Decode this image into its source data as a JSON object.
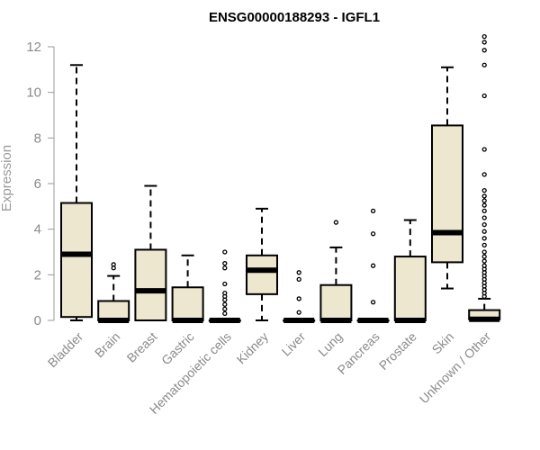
{
  "colors": {
    "box_fill": "#ede7cf",
    "box_stroke": "#000000",
    "median": "#000000",
    "axis": "#9a9a9a",
    "text_muted": "#8a8a8a"
  },
  "chart_data": {
    "type": "boxplot",
    "title": "ENSG00000188293 - IGFL1",
    "xlabel": "",
    "ylabel": "Expression",
    "ylim": [
      0,
      12.4
    ],
    "yticks": [
      0,
      2,
      4,
      6,
      8,
      10,
      12
    ],
    "grid": false,
    "legend": "none",
    "categories": [
      "Bladder",
      "Brain",
      "Breast",
      "Gastric",
      "Hematopoietic cells",
      "Kidney",
      "Liver",
      "Lung",
      "Pancreas",
      "Prostate",
      "Skin",
      "Unknown / Other"
    ],
    "boxes": [
      {
        "category": "Bladder",
        "whisker_low": 0.0,
        "q1": 0.15,
        "median": 2.9,
        "q3": 5.15,
        "whisker_high": 11.2,
        "outliers": []
      },
      {
        "category": "Brain",
        "whisker_low": 0.0,
        "q1": 0.0,
        "median": 0.0,
        "q3": 0.85,
        "whisker_high": 1.95,
        "outliers": [
          2.3,
          2.45
        ]
      },
      {
        "category": "Breast",
        "whisker_low": 0.0,
        "q1": 0.0,
        "median": 1.3,
        "q3": 3.1,
        "whisker_high": 5.9,
        "outliers": []
      },
      {
        "category": "Gastric",
        "whisker_low": 0.0,
        "q1": 0.0,
        "median": 0.0,
        "q3": 1.45,
        "whisker_high": 2.85,
        "outliers": []
      },
      {
        "category": "Hematopoietic cells",
        "whisker_low": 0.0,
        "q1": 0.0,
        "median": 0.0,
        "q3": 0.0,
        "whisker_high": 0.0,
        "outliers": [
          0.3,
          0.5,
          0.7,
          0.9,
          1.05,
          1.2,
          1.6,
          2.3,
          2.5,
          3.0
        ]
      },
      {
        "category": "Kidney",
        "whisker_low": 0.0,
        "q1": 1.15,
        "median": 2.2,
        "q3": 2.85,
        "whisker_high": 4.9,
        "outliers": []
      },
      {
        "category": "Liver",
        "whisker_low": 0.0,
        "q1": 0.0,
        "median": 0.0,
        "q3": 0.0,
        "whisker_high": 0.0,
        "outliers": [
          0.35,
          0.95,
          1.8,
          2.1
        ]
      },
      {
        "category": "Lung",
        "whisker_low": 0.0,
        "q1": 0.0,
        "median": 0.0,
        "q3": 1.55,
        "whisker_high": 3.2,
        "outliers": [
          4.3
        ]
      },
      {
        "category": "Pancreas",
        "whisker_low": 0.0,
        "q1": 0.0,
        "median": 0.0,
        "q3": 0.0,
        "whisker_high": 0.0,
        "outliers": [
          0.8,
          2.4,
          3.8,
          4.8
        ]
      },
      {
        "category": "Prostate",
        "whisker_low": 0.0,
        "q1": 0.0,
        "median": 0.0,
        "q3": 2.8,
        "whisker_high": 4.4,
        "outliers": []
      },
      {
        "category": "Skin",
        "whisker_low": 1.4,
        "q1": 2.55,
        "median": 3.85,
        "q3": 8.55,
        "whisker_high": 11.1,
        "outliers": []
      },
      {
        "category": "Unknown / Other",
        "whisker_low": 0.0,
        "q1": 0.05,
        "median": 0.05,
        "q3": 0.45,
        "whisker_high": 0.95,
        "outliers": [
          1.05,
          1.2,
          1.35,
          1.5,
          1.65,
          1.8,
          1.95,
          2.1,
          2.25,
          2.4,
          2.6,
          2.8,
          3.0,
          3.3,
          3.6,
          3.9,
          4.2,
          4.5,
          4.8,
          5.05,
          5.25,
          5.45,
          5.7,
          6.4,
          7.5,
          9.85,
          11.2,
          11.85,
          12.2,
          12.45
        ]
      }
    ]
  }
}
